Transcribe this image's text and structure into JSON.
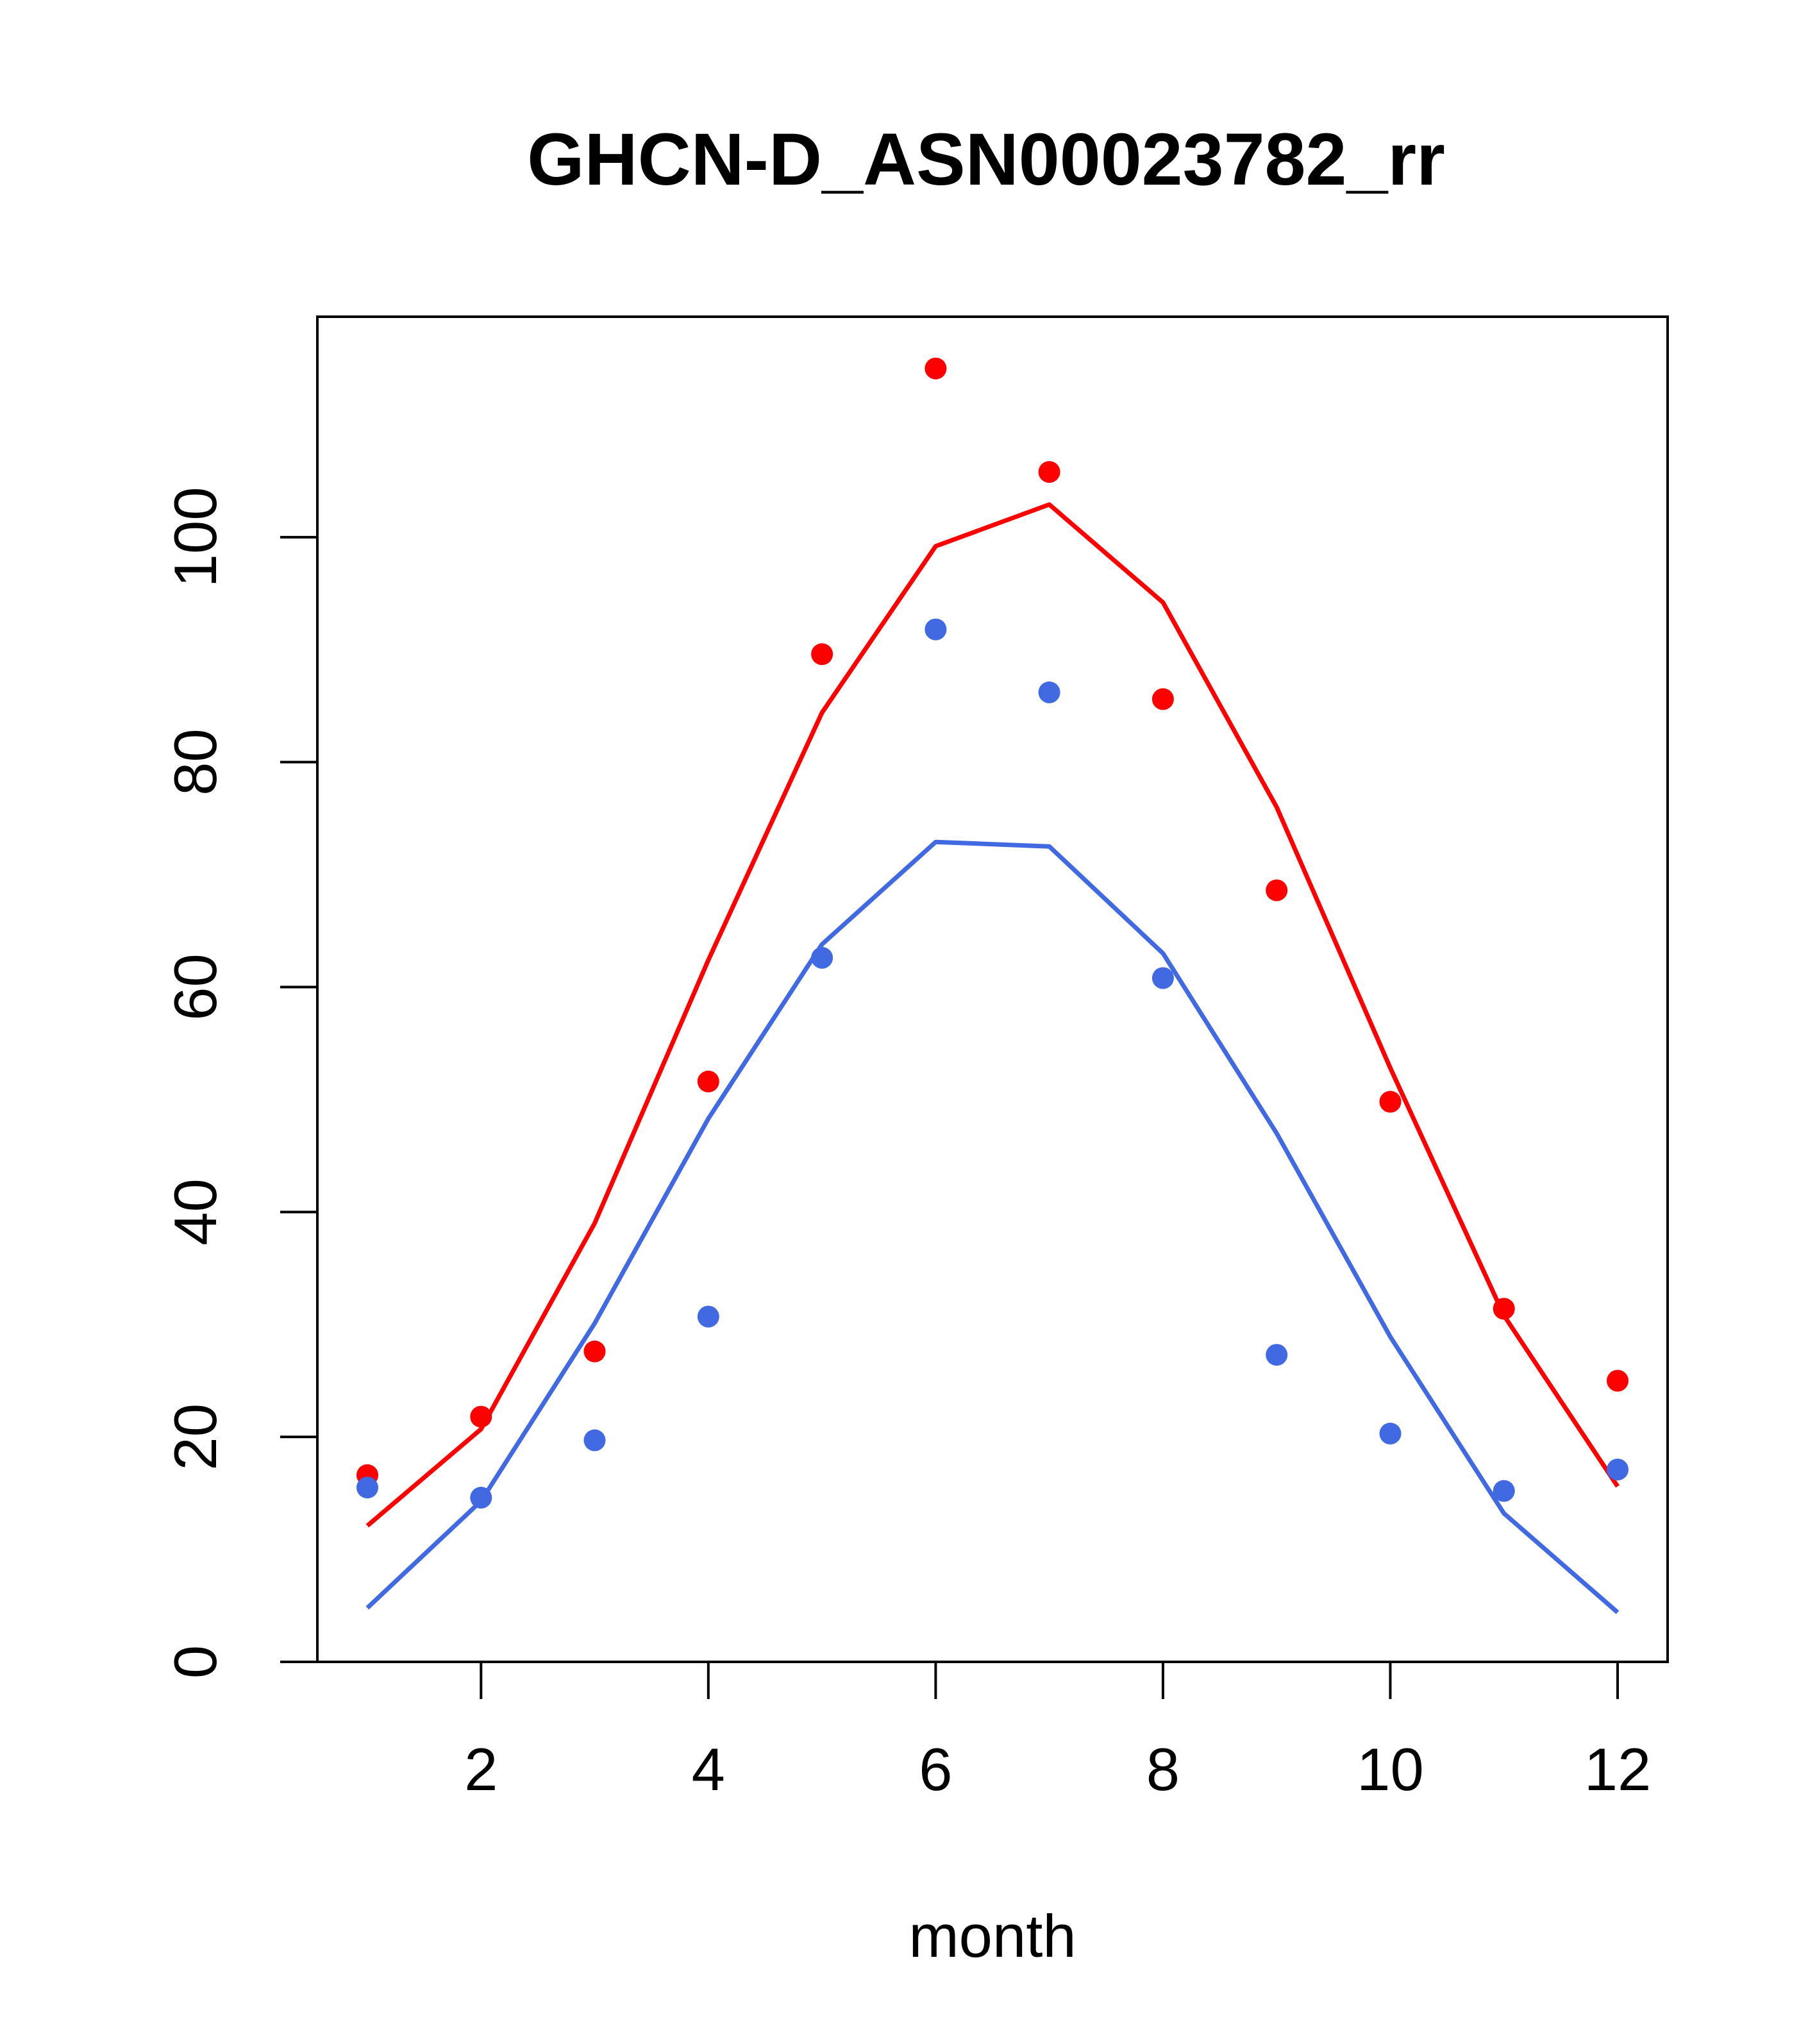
{
  "chart_data": {
    "type": "scatter",
    "title": "GHCN-D_ASN00023782_rr",
    "xlabel": "month",
    "ylabel": "",
    "xlim": [
      0.56,
      12.44
    ],
    "ylim": [
      0,
      119.6
    ],
    "x_ticks": [
      2,
      4,
      6,
      8,
      10,
      12
    ],
    "y_ticks": [
      0,
      20,
      40,
      60,
      80,
      100
    ],
    "grid": false,
    "legend": "none",
    "x": [
      1,
      2,
      3,
      4,
      5,
      6,
      7,
      8,
      9,
      10,
      11,
      12
    ],
    "series": [
      {
        "color": "#FF0000",
        "points": [
          16.6,
          21.8,
          27.6,
          51.6,
          89.6,
          115.0,
          105.8,
          85.6,
          68.6,
          49.8,
          31.4,
          25.0
        ],
        "line": [
          12.1,
          20.7,
          39.0,
          62.4,
          84.4,
          99.2,
          102.9,
          94.2,
          76.0,
          52.8,
          30.8,
          15.6
        ]
      },
      {
        "color": "#4169E1",
        "points": [
          15.5,
          14.6,
          19.7,
          30.7,
          62.6,
          91.8,
          86.2,
          60.8,
          27.3,
          20.3,
          15.2,
          17.1
        ],
        "line": [
          4.8,
          14.3,
          30.1,
          48.3,
          63.8,
          72.9,
          72.5,
          63.0,
          47.0,
          28.9,
          13.2,
          4.4
        ]
      }
    ]
  }
}
